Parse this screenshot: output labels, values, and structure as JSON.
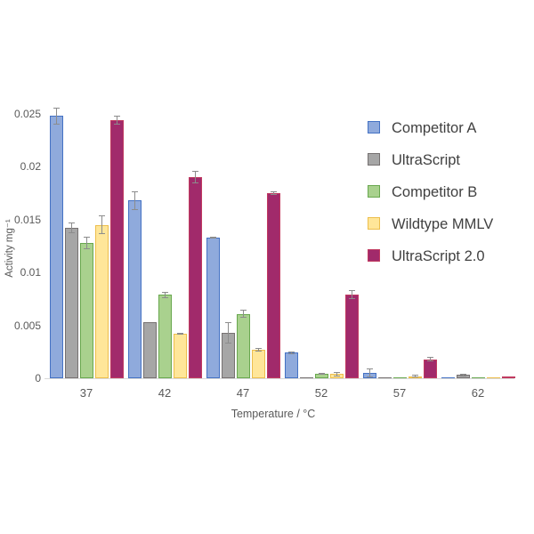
{
  "chart_data": {
    "type": "bar",
    "title": "",
    "xlabel": "Temperature / °C",
    "ylabel": "Activity mg⁻¹",
    "categories": [
      "37",
      "42",
      "47",
      "52",
      "57",
      "62"
    ],
    "y_ticks": [
      {
        "label": "0",
        "value": 0
      },
      {
        "label": "0.005",
        "value": 0.005
      },
      {
        "label": "0.01",
        "value": 0.01
      },
      {
        "label": "0.015",
        "value": 0.015
      },
      {
        "label": "0.02",
        "value": 0.02
      },
      {
        "label": "0.025",
        "value": 0.025
      }
    ],
    "ylim": [
      0,
      0.025
    ],
    "grid": false,
    "legend_position": "right",
    "series": [
      {
        "name": "Competitor A",
        "slug": "competitor-a",
        "fill": "#8FAADC",
        "border": "#4472C4",
        "values": [
          0.0248,
          0.0168,
          0.0133,
          0.0024,
          0.0005,
          0.0001
        ],
        "errors": [
          0.0008,
          0.0009,
          0.0001,
          0.0001,
          0.0004,
          0
        ]
      },
      {
        "name": "UltraScript",
        "slug": "ultrascript",
        "fill": "#A6A6A6",
        "border": "#767171",
        "values": [
          0.0142,
          0.0053,
          0.0043,
          0.0001,
          5e-05,
          0.0003
        ],
        "errors": [
          0.0005,
          0,
          0.001,
          0,
          0,
          0.0001
        ]
      },
      {
        "name": "Competitor B",
        "slug": "competitor-b",
        "fill": "#A9D18E",
        "border": "#69A84F",
        "values": [
          0.0128,
          0.0079,
          0.0061,
          0.0004,
          0.0001,
          0.0001
        ],
        "errors": [
          0.0006,
          0.0003,
          0.0004,
          0.0001,
          0,
          0
        ]
      },
      {
        "name": "Wildtype MMLV",
        "slug": "wildtype-mmlv",
        "fill": "#FFE699",
        "border": "#EDBE4C",
        "values": [
          0.0145,
          0.0042,
          0.0027,
          0.0004,
          0.0002,
          5e-05
        ],
        "errors": [
          0.0009,
          0.0001,
          0.0002,
          0.0002,
          0.0001,
          0
        ]
      },
      {
        "name": "UltraScript 2.0",
        "slug": "ultrascript-2-0",
        "fill": "#A12A6B",
        "border": "#C13A60",
        "values": [
          0.0244,
          0.019,
          0.0175,
          0.0079,
          0.0018,
          0.00015
        ],
        "errors": [
          0.0004,
          0.0006,
          0.0002,
          0.0004,
          0.0002,
          0
        ]
      }
    ],
    "colors": {
      "error_bar": "#8C8C8C",
      "axis_line": "#D9D9D9",
      "tick_label": "#595959",
      "axis_title": "#595959",
      "legend_text": "#404040",
      "background": "#FFFFFF"
    }
  }
}
